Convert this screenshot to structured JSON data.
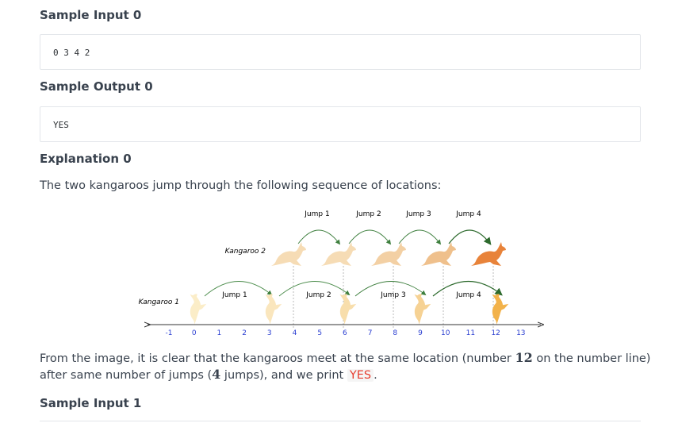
{
  "sample_input_0": {
    "heading": "Sample Input 0",
    "code": "0 3 4 2"
  },
  "sample_output_0": {
    "heading": "Sample Output 0",
    "code": "YES"
  },
  "explanation_0": {
    "heading": "Explanation 0",
    "intro": "The two kangaroos jump through the following sequence of locations:",
    "conclusion_part1": "From the image, it is clear that the kangaroos meet at the same location (number ",
    "meet_number": "12",
    "conclusion_part2": " on the number line)",
    "conclusion_line2_part1": "after same number of jumps (",
    "jump_count": "4",
    "conclusion_line2_part2": " jumps), and we print ",
    "answer": "YES",
    "conclusion_end": "."
  },
  "sample_input_1": {
    "heading": "Sample Input 1"
  },
  "figure": {
    "kangaroo1_label": "Kangaroo 1",
    "kangaroo2_label": "Kangaroo 2",
    "top_jump_labels": [
      "Jump 1",
      "Jump 2",
      "Jump 3",
      "Jump 4"
    ],
    "bottom_jump_labels": [
      "Jump 1",
      "Jump 2",
      "Jump 3",
      "Jump 4"
    ],
    "axis_ticks": [
      "-1",
      "0",
      "1",
      "2",
      "3",
      "4",
      "5",
      "6",
      "7",
      "8",
      "9",
      "10",
      "11",
      "12",
      "13"
    ],
    "colors": {
      "tick_text": "#2b3fd1",
      "arrow": "#3e7f3e",
      "kangaroo_light": "#f6dcb5",
      "kangaroo_dark": "#e8833a",
      "kangaroo1_light": "#fbedc8",
      "kangaroo1_dark": "#f2b24a"
    }
  }
}
